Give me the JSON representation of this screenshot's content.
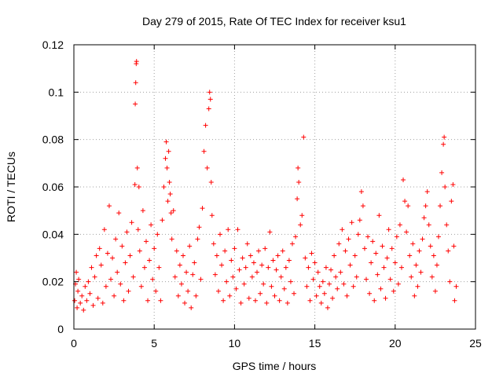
{
  "chart_data": {
    "type": "scatter",
    "title": "Day 279 of 2015, Rate Of TEC Index for receiver ksu1",
    "xlabel": "GPS time / hours",
    "ylabel": "ROTI / TECUs",
    "xlim": [
      0,
      25
    ],
    "ylim": [
      0,
      0.12
    ],
    "xticks": [
      0,
      5,
      10,
      15,
      20,
      25
    ],
    "yticks": [
      0,
      0.02,
      0.04,
      0.06,
      0.08,
      0.1,
      0.12
    ],
    "xtick_labels": [
      "0",
      "5",
      "10",
      "15",
      "20",
      "25"
    ],
    "ytick_labels": [
      "0",
      "0.02",
      "0.04",
      "0.06",
      "0.08",
      "0.1",
      "0.12"
    ],
    "grid": true,
    "marker": "+",
    "colors": {
      "points": "#ff0000",
      "grid": "#a0a0a0",
      "axes": "#000000"
    },
    "series": [
      {
        "name": "ROTI",
        "points": [
          [
            0.05,
            0.012
          ],
          [
            0.1,
            0.019
          ],
          [
            0.15,
            0.024
          ],
          [
            0.2,
            0.009
          ],
          [
            0.25,
            0.016
          ],
          [
            0.3,
            0.021
          ],
          [
            0.4,
            0.011
          ],
          [
            0.5,
            0.014
          ],
          [
            0.6,
            0.008
          ],
          [
            0.7,
            0.018
          ],
          [
            0.8,
            0.012
          ],
          [
            0.9,
            0.02
          ],
          [
            1.0,
            0.015
          ],
          [
            1.1,
            0.026
          ],
          [
            1.2,
            0.01
          ],
          [
            1.3,
            0.022
          ],
          [
            1.4,
            0.031
          ],
          [
            1.5,
            0.013
          ],
          [
            1.6,
            0.034
          ],
          [
            1.7,
            0.027
          ],
          [
            1.8,
            0.011
          ],
          [
            1.9,
            0.042
          ],
          [
            2.0,
            0.018
          ],
          [
            2.1,
            0.032
          ],
          [
            2.2,
            0.052
          ],
          [
            2.3,
            0.021
          ],
          [
            2.4,
            0.03
          ],
          [
            2.5,
            0.014
          ],
          [
            2.6,
            0.038
          ],
          [
            2.7,
            0.024
          ],
          [
            2.8,
            0.049
          ],
          [
            2.9,
            0.019
          ],
          [
            3.0,
            0.035
          ],
          [
            3.1,
            0.012
          ],
          [
            3.2,
            0.028
          ],
          [
            3.3,
            0.041
          ],
          [
            3.4,
            0.016
          ],
          [
            3.5,
            0.031
          ],
          [
            3.6,
            0.045
          ],
          [
            3.7,
            0.022
          ],
          [
            3.8,
            0.061
          ],
          [
            3.82,
            0.095
          ],
          [
            3.85,
            0.104
          ],
          [
            3.88,
            0.112
          ],
          [
            3.9,
            0.113
          ],
          [
            3.95,
            0.068
          ],
          [
            4.0,
            0.042
          ],
          [
            4.05,
            0.06
          ],
          [
            4.1,
            0.033
          ],
          [
            4.2,
            0.018
          ],
          [
            4.3,
            0.05
          ],
          [
            4.4,
            0.026
          ],
          [
            4.5,
            0.037
          ],
          [
            4.6,
            0.012
          ],
          [
            4.7,
            0.029
          ],
          [
            4.8,
            0.044
          ],
          [
            4.9,
            0.021
          ],
          [
            5.0,
            0.034
          ],
          [
            5.1,
            0.016
          ],
          [
            5.2,
            0.04
          ],
          [
            5.3,
            0.026
          ],
          [
            5.4,
            0.012
          ],
          [
            5.5,
            0.046
          ],
          [
            5.6,
            0.06
          ],
          [
            5.7,
            0.072
          ],
          [
            5.75,
            0.079
          ],
          [
            5.8,
            0.068
          ],
          [
            5.85,
            0.054
          ],
          [
            5.9,
            0.075
          ],
          [
            5.95,
            0.062
          ],
          [
            6.0,
            0.057
          ],
          [
            6.05,
            0.049
          ],
          [
            6.1,
            0.038
          ],
          [
            6.2,
            0.05
          ],
          [
            6.3,
            0.022
          ],
          [
            6.4,
            0.033
          ],
          [
            6.5,
            0.014
          ],
          [
            6.6,
            0.027
          ],
          [
            6.7,
            0.019
          ],
          [
            6.8,
            0.031
          ],
          [
            6.9,
            0.011
          ],
          [
            7.0,
            0.024
          ],
          [
            7.1,
            0.016
          ],
          [
            7.2,
            0.035
          ],
          [
            7.3,
            0.009
          ],
          [
            7.4,
            0.023
          ],
          [
            7.5,
            0.028
          ],
          [
            7.6,
            0.014
          ],
          [
            7.7,
            0.038
          ],
          [
            7.8,
            0.043
          ],
          [
            7.9,
            0.021
          ],
          [
            8.0,
            0.051
          ],
          [
            8.1,
            0.075
          ],
          [
            8.2,
            0.086
          ],
          [
            8.3,
            0.068
          ],
          [
            8.4,
            0.093
          ],
          [
            8.45,
            0.1
          ],
          [
            8.5,
            0.097
          ],
          [
            8.55,
            0.062
          ],
          [
            8.6,
            0.048
          ],
          [
            8.7,
            0.036
          ],
          [
            8.8,
            0.023
          ],
          [
            8.9,
            0.031
          ],
          [
            9.0,
            0.016
          ],
          [
            9.1,
            0.04
          ],
          [
            9.2,
            0.027
          ],
          [
            9.3,
            0.012
          ],
          [
            9.4,
            0.033
          ],
          [
            9.5,
            0.02
          ],
          [
            9.6,
            0.042
          ],
          [
            9.7,
            0.014
          ],
          [
            9.8,
            0.029
          ],
          [
            9.9,
            0.022
          ],
          [
            10.0,
            0.034
          ],
          [
            10.1,
            0.017
          ],
          [
            10.2,
            0.042
          ],
          [
            10.3,
            0.025
          ],
          [
            10.4,
            0.011
          ],
          [
            10.5,
            0.03
          ],
          [
            10.6,
            0.019
          ],
          [
            10.7,
            0.026
          ],
          [
            10.8,
            0.036
          ],
          [
            10.9,
            0.013
          ],
          [
            11.0,
            0.031
          ],
          [
            11.1,
            0.022
          ],
          [
            11.2,
            0.028
          ],
          [
            11.3,
            0.012
          ],
          [
            11.4,
            0.024
          ],
          [
            11.5,
            0.033
          ],
          [
            11.6,
            0.015
          ],
          [
            11.7,
            0.027
          ],
          [
            11.8,
            0.019
          ],
          [
            11.9,
            0.034
          ],
          [
            12.0,
            0.011
          ],
          [
            12.1,
            0.026
          ],
          [
            12.2,
            0.041
          ],
          [
            12.3,
            0.018
          ],
          [
            12.4,
            0.029
          ],
          [
            12.5,
            0.014
          ],
          [
            12.6,
            0.025
          ],
          [
            12.7,
            0.031
          ],
          [
            12.8,
            0.012
          ],
          [
            12.9,
            0.022
          ],
          [
            13.0,
            0.033
          ],
          [
            13.1,
            0.017
          ],
          [
            13.2,
            0.026
          ],
          [
            13.3,
            0.011
          ],
          [
            13.4,
            0.029
          ],
          [
            13.5,
            0.02
          ],
          [
            13.6,
            0.036
          ],
          [
            13.7,
            0.015
          ],
          [
            13.8,
            0.039
          ],
          [
            13.9,
            0.055
          ],
          [
            13.95,
            0.068
          ],
          [
            14.0,
            0.062
          ],
          [
            14.1,
            0.044
          ],
          [
            14.2,
            0.048
          ],
          [
            14.3,
            0.081
          ],
          [
            14.4,
            0.03
          ],
          [
            14.5,
            0.018
          ],
          [
            14.6,
            0.026
          ],
          [
            14.7,
            0.012
          ],
          [
            14.8,
            0.032
          ],
          [
            14.9,
            0.021
          ],
          [
            15.0,
            0.028
          ],
          [
            15.1,
            0.014
          ],
          [
            15.2,
            0.024
          ],
          [
            15.3,
            0.018
          ],
          [
            15.4,
            0.011
          ],
          [
            15.5,
            0.02
          ],
          [
            15.6,
            0.015
          ],
          [
            15.7,
            0.026
          ],
          [
            15.8,
            0.009
          ],
          [
            15.9,
            0.019
          ],
          [
            16.0,
            0.025
          ],
          [
            16.1,
            0.013
          ],
          [
            16.2,
            0.031
          ],
          [
            16.3,
            0.022
          ],
          [
            16.4,
            0.017
          ],
          [
            16.5,
            0.036
          ],
          [
            16.6,
            0.024
          ],
          [
            16.7,
            0.042
          ],
          [
            16.8,
            0.019
          ],
          [
            16.9,
            0.033
          ],
          [
            17.0,
            0.014
          ],
          [
            17.1,
            0.038
          ],
          [
            17.2,
            0.027
          ],
          [
            17.3,
            0.045
          ],
          [
            17.4,
            0.018
          ],
          [
            17.5,
            0.031
          ],
          [
            17.6,
            0.022
          ],
          [
            17.7,
            0.04
          ],
          [
            17.8,
            0.046
          ],
          [
            17.9,
            0.058
          ],
          [
            18.0,
            0.052
          ],
          [
            18.1,
            0.034
          ],
          [
            18.2,
            0.021
          ],
          [
            18.3,
            0.039
          ],
          [
            18.4,
            0.015
          ],
          [
            18.5,
            0.028
          ],
          [
            18.6,
            0.037
          ],
          [
            18.7,
            0.012
          ],
          [
            18.8,
            0.032
          ],
          [
            18.9,
            0.023
          ],
          [
            19.0,
            0.048
          ],
          [
            19.1,
            0.017
          ],
          [
            19.2,
            0.035
          ],
          [
            19.3,
            0.026
          ],
          [
            19.4,
            0.013
          ],
          [
            19.5,
            0.03
          ],
          [
            19.6,
            0.042
          ],
          [
            19.7,
            0.021
          ],
          [
            19.8,
            0.034
          ],
          [
            19.9,
            0.016
          ],
          [
            20.0,
            0.028
          ],
          [
            20.1,
            0.039
          ],
          [
            20.2,
            0.019
          ],
          [
            20.3,
            0.044
          ],
          [
            20.4,
            0.026
          ],
          [
            20.5,
            0.063
          ],
          [
            20.6,
            0.054
          ],
          [
            20.7,
            0.041
          ],
          [
            20.8,
            0.052
          ],
          [
            20.9,
            0.031
          ],
          [
            21.0,
            0.022
          ],
          [
            21.1,
            0.036
          ],
          [
            21.2,
            0.014
          ],
          [
            21.3,
            0.027
          ],
          [
            21.4,
            0.018
          ],
          [
            21.5,
            0.033
          ],
          [
            21.6,
            0.024
          ],
          [
            21.7,
            0.038
          ],
          [
            21.8,
            0.047
          ],
          [
            21.9,
            0.052
          ],
          [
            22.0,
            0.058
          ],
          [
            22.1,
            0.044
          ],
          [
            22.2,
            0.035
          ],
          [
            22.3,
            0.022
          ],
          [
            22.4,
            0.031
          ],
          [
            22.5,
            0.016
          ],
          [
            22.6,
            0.027
          ],
          [
            22.7,
            0.039
          ],
          [
            22.8,
            0.052
          ],
          [
            22.9,
            0.066
          ],
          [
            23.0,
            0.078
          ],
          [
            23.05,
            0.081
          ],
          [
            23.1,
            0.06
          ],
          [
            23.2,
            0.044
          ],
          [
            23.3,
            0.033
          ],
          [
            23.4,
            0.02
          ],
          [
            23.5,
            0.054
          ],
          [
            23.6,
            0.061
          ],
          [
            23.65,
            0.035
          ],
          [
            23.7,
            0.012
          ],
          [
            23.8,
            0.018
          ]
        ]
      }
    ]
  }
}
